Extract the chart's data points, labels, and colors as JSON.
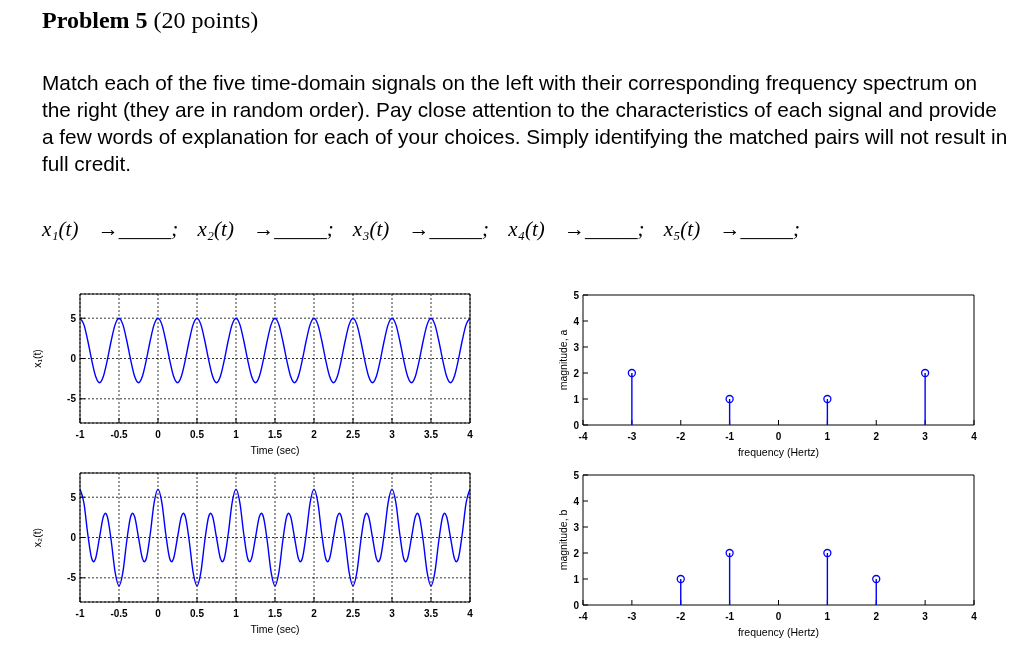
{
  "chart_data": [
    {
      "type": "other",
      "title": "Problem 5",
      "subtitle": "(20 points)",
      "annotations": [
        "Match each of the five time-domain signals on the left with their corresponding frequency spectrum on the right (they are in random order). Pay close attention to the characteristics of each signal and provide a few words of explanation for each of your choices. Simply identifying the matched pairs will not result in full credit.",
        "x₁(t) →_____; x₂(t) →_____; x₃(t) →_____; x₄(t) →_____; x₅(t) →_____;"
      ]
    },
    {
      "type": "line",
      "color": "#0000ff",
      "grid": true,
      "xlabel": "Time (sec)",
      "ylabel": "x₁(t)",
      "xlim": [
        -1,
        4
      ],
      "ylim": [
        -8,
        8
      ],
      "xticks": [
        -1,
        -0.5,
        0,
        0.5,
        1,
        1.5,
        2,
        2.5,
        3,
        3.5,
        4
      ],
      "yticks": [
        -5,
        0,
        5
      ],
      "x": [
        -1,
        -0.95,
        -0.9,
        -0.85,
        -0.8,
        -0.75,
        -0.7,
        -0.65,
        -0.6,
        -0.55,
        -0.5,
        -0.45,
        -0.4,
        -0.35,
        -0.3,
        -0.25,
        -0.2,
        -0.15,
        -0.1,
        -0.05,
        0,
        0.05,
        0.1,
        0.15,
        0.2,
        0.25,
        0.3,
        0.35,
        0.4,
        0.45,
        0.5,
        0.55,
        0.6,
        0.65,
        0.7,
        0.75,
        0.8,
        0.85,
        0.9,
        0.95,
        1,
        1.05,
        1.1,
        1.15,
        1.2,
        1.25,
        1.3,
        1.35,
        1.4,
        1.45,
        1.5,
        1.55,
        1.6,
        1.65,
        1.7,
        1.75,
        1.8,
        1.85,
        1.9,
        1.95,
        2,
        2.05,
        2.1,
        2.15,
        2.2,
        2.25,
        2.3,
        2.35,
        2.4,
        2.45,
        2.5,
        2.55,
        2.6,
        2.65,
        2.7,
        2.75,
        2.8,
        2.85,
        2.9,
        2.95,
        3,
        3.05,
        3.1,
        3.15,
        3.2,
        3.25,
        3.3,
        3.35,
        3.4,
        3.45,
        3.5,
        3.55,
        3.6,
        3.65,
        3.7,
        3.75,
        3.8,
        3.85,
        3.9,
        3.95,
        4
      ],
      "values": [
        5,
        4.2,
        2.2,
        -0.2,
        -2.2,
        -3,
        -2.2,
        -0.2,
        2.2,
        4.2,
        5,
        4.2,
        2.2,
        -0.2,
        -2.2,
        -3,
        -2.2,
        -0.2,
        2.2,
        4.2,
        5,
        4.2,
        2.2,
        -0.2,
        -2.2,
        -3,
        -2.2,
        -0.2,
        2.2,
        4.2,
        5,
        4.2,
        2.2,
        -0.2,
        -2.2,
        -3,
        -2.2,
        -0.2,
        2.2,
        4.2,
        5,
        4.2,
        2.2,
        -0.2,
        -2.2,
        -3,
        -2.2,
        -0.2,
        2.2,
        4.2,
        5,
        4.2,
        2.2,
        -0.2,
        -2.2,
        -3,
        -2.2,
        -0.2,
        2.2,
        4.2,
        5,
        4.2,
        2.2,
        -0.2,
        -2.2,
        -3,
        -2.2,
        -0.2,
        2.2,
        4.2,
        5,
        4.2,
        2.2,
        -0.2,
        -2.2,
        -3,
        -2.2,
        -0.2,
        2.2,
        4.2,
        5,
        4.2,
        2.2,
        -0.2,
        -2.2,
        -3,
        -2.2,
        -0.2,
        2.2,
        4.2,
        5,
        4.2,
        2.2,
        -0.2,
        -2.2,
        -3,
        -2.2,
        -0.2,
        2.2,
        4.2,
        5
      ]
    },
    {
      "type": "lollipop",
      "color": "#0000ff",
      "marker": "circle",
      "xlabel": "frequency (Hertz)",
      "ylabel": "magnitude, a",
      "xlim": [
        -4,
        4
      ],
      "ylim": [
        0,
        5
      ],
      "xticks": [
        -4,
        -3,
        -2,
        -1,
        0,
        1,
        2,
        3,
        4
      ],
      "yticks": [
        0,
        1,
        2,
        3,
        4,
        5
      ],
      "x": [
        -3,
        -1,
        1,
        3
      ],
      "values": [
        2,
        1,
        1,
        2
      ]
    },
    {
      "type": "line",
      "color": "#0000ff",
      "grid": true,
      "xlabel": "Time (sec)",
      "ylabel": "x₂(t)",
      "xlim": [
        -1,
        4
      ],
      "ylim": [
        -8,
        8
      ],
      "xticks": [
        -1,
        -0.5,
        0,
        0.5,
        1,
        1.5,
        2,
        2.5,
        3,
        3.5,
        4
      ],
      "yticks": [
        -5,
        0,
        5
      ],
      "x": [
        -1,
        -0.95,
        -0.9,
        -0.85,
        -0.825,
        -0.8,
        -0.75,
        -0.7,
        -0.675,
        -0.65,
        -0.6,
        -0.55,
        -0.5,
        -0.45,
        -0.4,
        -0.35,
        -0.325,
        -0.3,
        -0.25,
        -0.2,
        -0.175,
        -0.15,
        -0.1,
        -0.05,
        0,
        0.05,
        0.1,
        0.15,
        0.175,
        0.2,
        0.25,
        0.3,
        0.325,
        0.35,
        0.4,
        0.45,
        0.5,
        0.55,
        0.6,
        0.65,
        0.675,
        0.7,
        0.75,
        0.8,
        0.825,
        0.85,
        0.9,
        0.95,
        1,
        1.05,
        1.1,
        1.15,
        1.175,
        1.2,
        1.25,
        1.3,
        1.325,
        1.35,
        1.4,
        1.45,
        1.5,
        1.55,
        1.6,
        1.65,
        1.675,
        1.7,
        1.75,
        1.8,
        1.825,
        1.85,
        1.9,
        1.95,
        2,
        2.05,
        2.1,
        2.15,
        2.175,
        2.2,
        2.25,
        2.3,
        2.325,
        2.35,
        2.4,
        2.45,
        2.5,
        2.55,
        2.6,
        2.65,
        2.675,
        2.7,
        2.75,
        2.8,
        2.825,
        2.85,
        2.9,
        2.95,
        3,
        3.05,
        3.1,
        3.15,
        3.175,
        3.2,
        3.25,
        3.3,
        3.325,
        3.35,
        3.4,
        3.45,
        3.5,
        3.55,
        3.6,
        3.65,
        3.675,
        3.7,
        3.75,
        3.8,
        3.825,
        3.85,
        3.9,
        3.95,
        4
      ],
      "values": [
        6,
        4.3,
        0.4,
        -2.6,
        -3,
        -2.6,
        0,
        2.6,
        3,
        2.6,
        -0.4,
        -4.3,
        -6,
        -4.3,
        -0.4,
        2.6,
        3,
        2.6,
        0,
        -2.6,
        -3,
        -2.6,
        0.4,
        4.3,
        6,
        4.3,
        0.4,
        -2.6,
        -3,
        -2.6,
        0,
        2.6,
        3,
        2.6,
        -0.4,
        -4.3,
        -6,
        -4.3,
        -0.4,
        2.6,
        3,
        2.6,
        0,
        -2.6,
        -3,
        -2.6,
        0.4,
        4.3,
        6,
        4.3,
        0.4,
        -2.6,
        -3,
        -2.6,
        0,
        2.6,
        3,
        2.6,
        -0.4,
        -4.3,
        -6,
        -4.3,
        -0.4,
        2.6,
        3,
        2.6,
        0,
        -2.6,
        -3,
        -2.6,
        0.4,
        4.3,
        6,
        4.3,
        0.4,
        -2.6,
        -3,
        -2.6,
        0,
        2.6,
        3,
        2.6,
        -0.4,
        -4.3,
        -6,
        -4.3,
        -0.4,
        2.6,
        3,
        2.6,
        0,
        -2.6,
        -3,
        -2.6,
        0.4,
        4.3,
        6,
        4.3,
        0.4,
        -2.6,
        -3,
        -2.6,
        0,
        2.6,
        3,
        2.6,
        -0.4,
        -4.3,
        -6,
        -4.3,
        -0.4,
        2.6,
        3,
        2.6,
        0,
        -2.6,
        -3,
        -2.6,
        0.4,
        4.3,
        6
      ]
    },
    {
      "type": "lollipop",
      "color": "#0000ff",
      "marker": "circle",
      "xlabel": "frequency (Hertz)",
      "ylabel": "magnitude, b",
      "xlim": [
        -4,
        4
      ],
      "ylim": [
        0,
        5
      ],
      "xticks": [
        -4,
        -3,
        -2,
        -1,
        0,
        1,
        2,
        3,
        4
      ],
      "yticks": [
        0,
        1,
        2,
        3,
        4,
        5
      ],
      "x": [
        -2,
        -1,
        1,
        2
      ],
      "values": [
        1,
        2,
        2,
        1
      ]
    }
  ]
}
